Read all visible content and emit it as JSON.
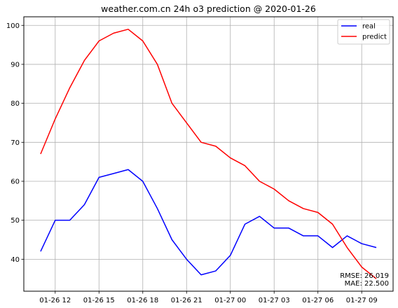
{
  "chart_data": {
    "type": "line",
    "title": "weather.com.cn 24h o3 prediction @ 2020-01-26",
    "xlabel": "",
    "ylabel": "",
    "x": [
      "2020-01-26 11:00",
      "2020-01-26 12:00",
      "2020-01-26 13:00",
      "2020-01-26 14:00",
      "2020-01-26 15:00",
      "2020-01-26 16:00",
      "2020-01-26 17:00",
      "2020-01-26 18:00",
      "2020-01-26 19:00",
      "2020-01-26 20:00",
      "2020-01-26 21:00",
      "2020-01-26 22:00",
      "2020-01-26 23:00",
      "2020-01-27 00:00",
      "2020-01-27 01:00",
      "2020-01-27 02:00",
      "2020-01-27 03:00",
      "2020-01-27 04:00",
      "2020-01-27 05:00",
      "2020-01-27 06:00",
      "2020-01-27 07:00",
      "2020-01-27 08:00",
      "2020-01-27 09:00",
      "2020-01-27 10:00"
    ],
    "xticks": [
      "01-26 12",
      "01-26 15",
      "01-26 18",
      "01-26 21",
      "01-27 00",
      "01-27 03",
      "01-27 06",
      "01-27 09"
    ],
    "yticks": [
      40,
      50,
      60,
      70,
      80,
      90,
      100
    ],
    "ylim": [
      31.8,
      102.2
    ],
    "grid": true,
    "legend_position": "top-right",
    "series": [
      {
        "name": "real",
        "color": "#0000ff",
        "values": [
          42,
          50,
          50,
          54,
          61,
          62,
          63,
          60,
          53,
          45,
          40,
          36,
          37,
          41,
          49,
          51,
          48,
          48,
          46,
          46,
          43,
          46,
          44,
          43
        ]
      },
      {
        "name": "predict",
        "color": "#ff0000",
        "values": [
          67,
          76,
          84,
          91,
          96,
          98,
          99,
          96,
          90,
          80,
          75,
          70,
          69,
          66,
          64,
          60,
          58,
          55,
          53,
          52,
          49,
          43,
          38,
          35
        ]
      }
    ],
    "annotations": [
      "RMSE: 26.019",
      "MAE: 22.500"
    ]
  }
}
